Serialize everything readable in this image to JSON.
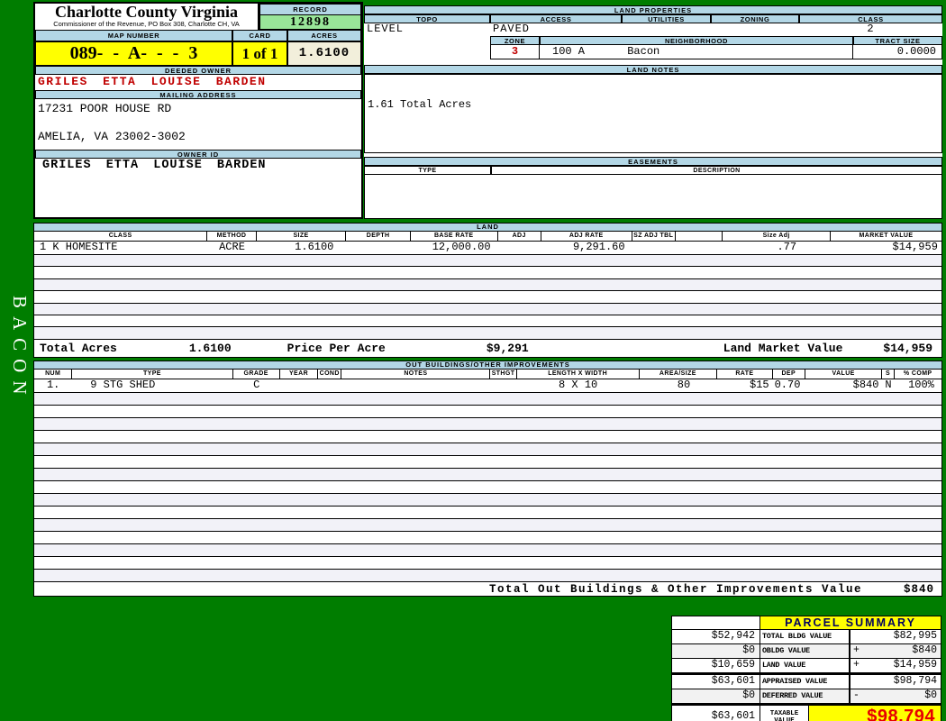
{
  "colors": {
    "page_background_green": "#007d00",
    "header_bar_blue": "#b3d7e6",
    "record_green": "#99e699",
    "highlight_yellow": "#ffff00",
    "acres_cream": "#f2efdb",
    "owner_red": "#c00000",
    "taxable_red": "#e60000"
  },
  "sidebar": {
    "vertical_label": "BACON"
  },
  "header": {
    "county_title": "Charlotte County Virginia",
    "commissioner_line": "Commissioner of the Revenue, PO Box 308, Charlotte CH, VA",
    "record_label": "RECORD",
    "record_value": "12898",
    "map_number_label": "MAP NUMBER",
    "map_number_value": "089- - A- - - 3",
    "card_label": "CARD",
    "card_value": "1 of 1",
    "acres_label": "ACRES",
    "acres_value": "1.6100",
    "deeded_owner_label": "DEEDED OWNER",
    "deeded_owner_value": "GRILES ETTA LOUISE BARDEN",
    "mailing_address_label": "MAILING ADDRESS",
    "mailing_address_line1": "17231 POOR HOUSE RD",
    "mailing_address_line2": "AMELIA, VA 23002-3002",
    "owner_id_label": "OWNER ID",
    "owner_id_value": "GRILES ETTA LOUISE BARDEN"
  },
  "land_properties": {
    "title": "LAND PROPERTIES",
    "headers": [
      "TOPO",
      "ACCESS",
      "UTILITIES",
      "ZONING",
      "CLASS"
    ],
    "topo_value": "LEVEL",
    "access_value": "PAVED",
    "utilities_value": "",
    "zoning_value": "",
    "class_value": "2",
    "zone_label": "ZONE",
    "zone_value": "3",
    "neighborhood_label": "NEIGHBORHOOD",
    "neighborhood_code": "100 A",
    "neighborhood_name": "Bacon",
    "tract_size_label": "TRACT SIZE",
    "tract_size_value": "0.0000"
  },
  "land_notes": {
    "title": "LAND NOTES",
    "note": "1.61 Total Acres"
  },
  "easements": {
    "title": "EASEMENTS",
    "type_label": "TYPE",
    "description_label": "DESCRIPTION"
  },
  "land_table": {
    "title": "LAND",
    "headers": [
      "CLASS",
      "METHOD",
      "SIZE",
      "DEPTH",
      "BASE RATE",
      "ADJ",
      "ADJ RATE",
      "SZ ADJ TBL",
      "",
      "Size Adj",
      "MARKET VALUE"
    ],
    "rows": [
      [
        "1 K HOMESITE",
        "ACRE",
        "1.6100",
        "",
        "12,000.00",
        "",
        "9,291.60",
        "",
        "",
        ".77",
        "$14,959"
      ]
    ],
    "totals": {
      "total_acres_label": "Total Acres",
      "total_acres_value": "1.6100",
      "price_per_acre_label": "Price Per Acre",
      "price_per_acre_value": "$9,291",
      "land_market_value_label": "Land Market Value",
      "land_market_value": "$14,959"
    }
  },
  "out_buildings": {
    "title": "OUT BUILDINGS/OTHER IMPROVEMENTS",
    "headers": [
      "NUM",
      "TYPE",
      "GRADE",
      "YEAR",
      "COND",
      "NOTES",
      "STHGT",
      "LENGTH X WIDTH",
      "AREA/SIZE",
      "RATE",
      "DEP",
      "VALUE",
      "S",
      "% COMP"
    ],
    "rows": [
      [
        "1.",
        "9 STG SHED",
        "C",
        "",
        "",
        "",
        "",
        "8 X 10",
        "80",
        "$15",
        "0.70",
        "$840",
        "N",
        "100%"
      ]
    ],
    "total_label": "Total Out Buildings & Other Improvements Value",
    "total_value": "$840"
  },
  "parcel_summary": {
    "title": "PARCEL SUMMARY",
    "rows": [
      {
        "prior": "$52,942",
        "label": "TOTAL BLDG VALUE",
        "op": "",
        "value": "$82,995"
      },
      {
        "prior": "$0",
        "label": "OBLDG VALUE",
        "op": "+",
        "value": "$840"
      },
      {
        "prior": "$10,659",
        "label": "LAND VALUE",
        "op": "+",
        "value": "$14,959"
      },
      {
        "prior": "$63,601",
        "label": "APPRAISED VALUE",
        "op": "",
        "value": "$98,794"
      },
      {
        "prior": "$0",
        "label": "DEFERRED VALUE",
        "op": "-",
        "value": "$0"
      }
    ],
    "taxable": {
      "prior": "$63,601",
      "label_line1": "TAXABLE",
      "label_line2": "VALUE",
      "value": "$98,794"
    }
  }
}
